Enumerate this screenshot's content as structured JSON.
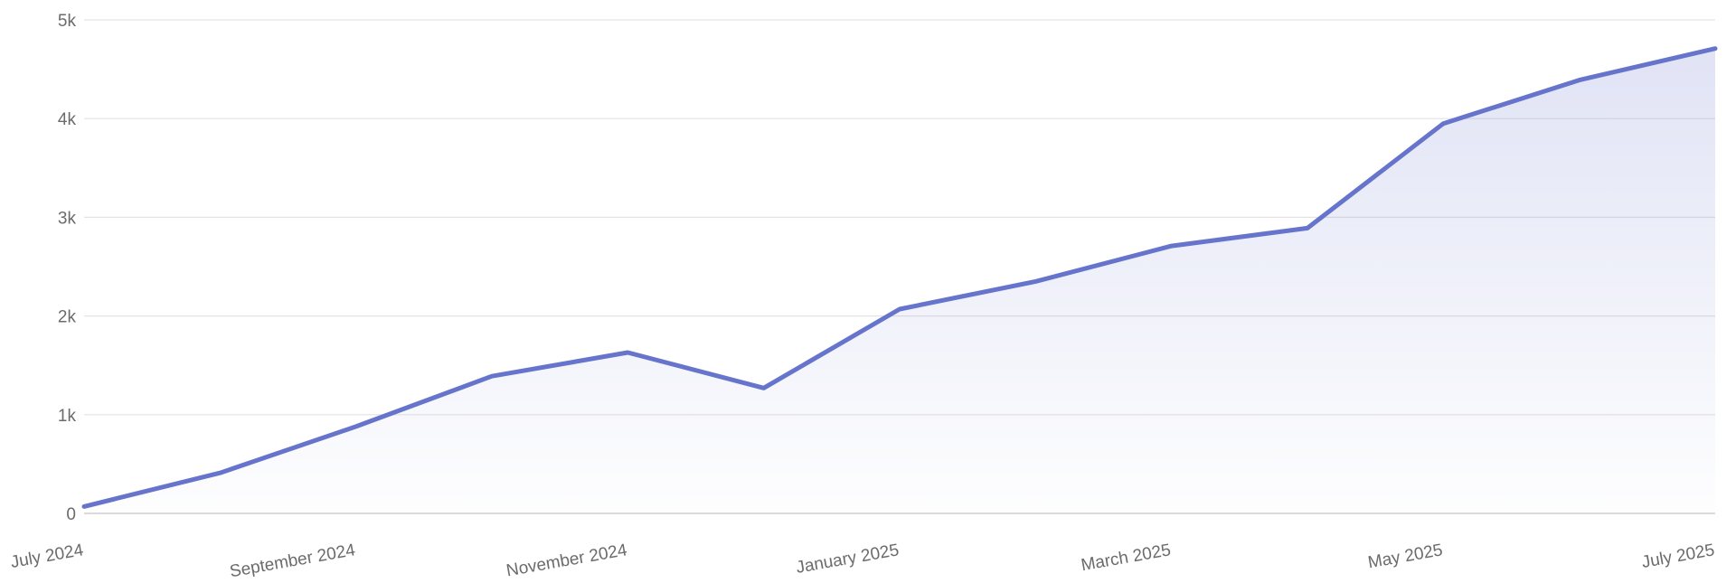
{
  "chart_data": {
    "type": "area",
    "title": "",
    "xlabel": "",
    "ylabel": "",
    "x": [
      "2024-07",
      "2024-08",
      "2024-09",
      "2024-10",
      "2024-11",
      "2024-12",
      "2025-01",
      "2025-02",
      "2025-03",
      "2025-04",
      "2025-05",
      "2025-06",
      "2025-07"
    ],
    "x_tick_labels": [
      {
        "x": "2024-07",
        "label": "July 2024"
      },
      {
        "x": "2024-09",
        "label": "September 2024"
      },
      {
        "x": "2024-11",
        "label": "November 2024"
      },
      {
        "x": "2025-01",
        "label": "January 2025"
      },
      {
        "x": "2025-03",
        "label": "March 2025"
      },
      {
        "x": "2025-05",
        "label": "May 2025"
      },
      {
        "x": "2025-07",
        "label": "July 2025"
      }
    ],
    "y_ticks": [
      {
        "value": 0,
        "label": "0"
      },
      {
        "value": 1000,
        "label": "1k"
      },
      {
        "value": 2000,
        "label": "2k"
      },
      {
        "value": 3000,
        "label": "3k"
      },
      {
        "value": 4000,
        "label": "4k"
      },
      {
        "value": 5000,
        "label": "5k"
      }
    ],
    "ylim": [
      0,
      5000
    ],
    "grid": true,
    "legend": "none",
    "series": [
      {
        "values": [
          70,
          410,
          880,
          1390,
          1630,
          1270,
          2070,
          2350,
          2710,
          2890,
          3950,
          4390,
          4710
        ],
        "color": "#6674cc",
        "fill_color": "#6674cc"
      }
    ]
  }
}
